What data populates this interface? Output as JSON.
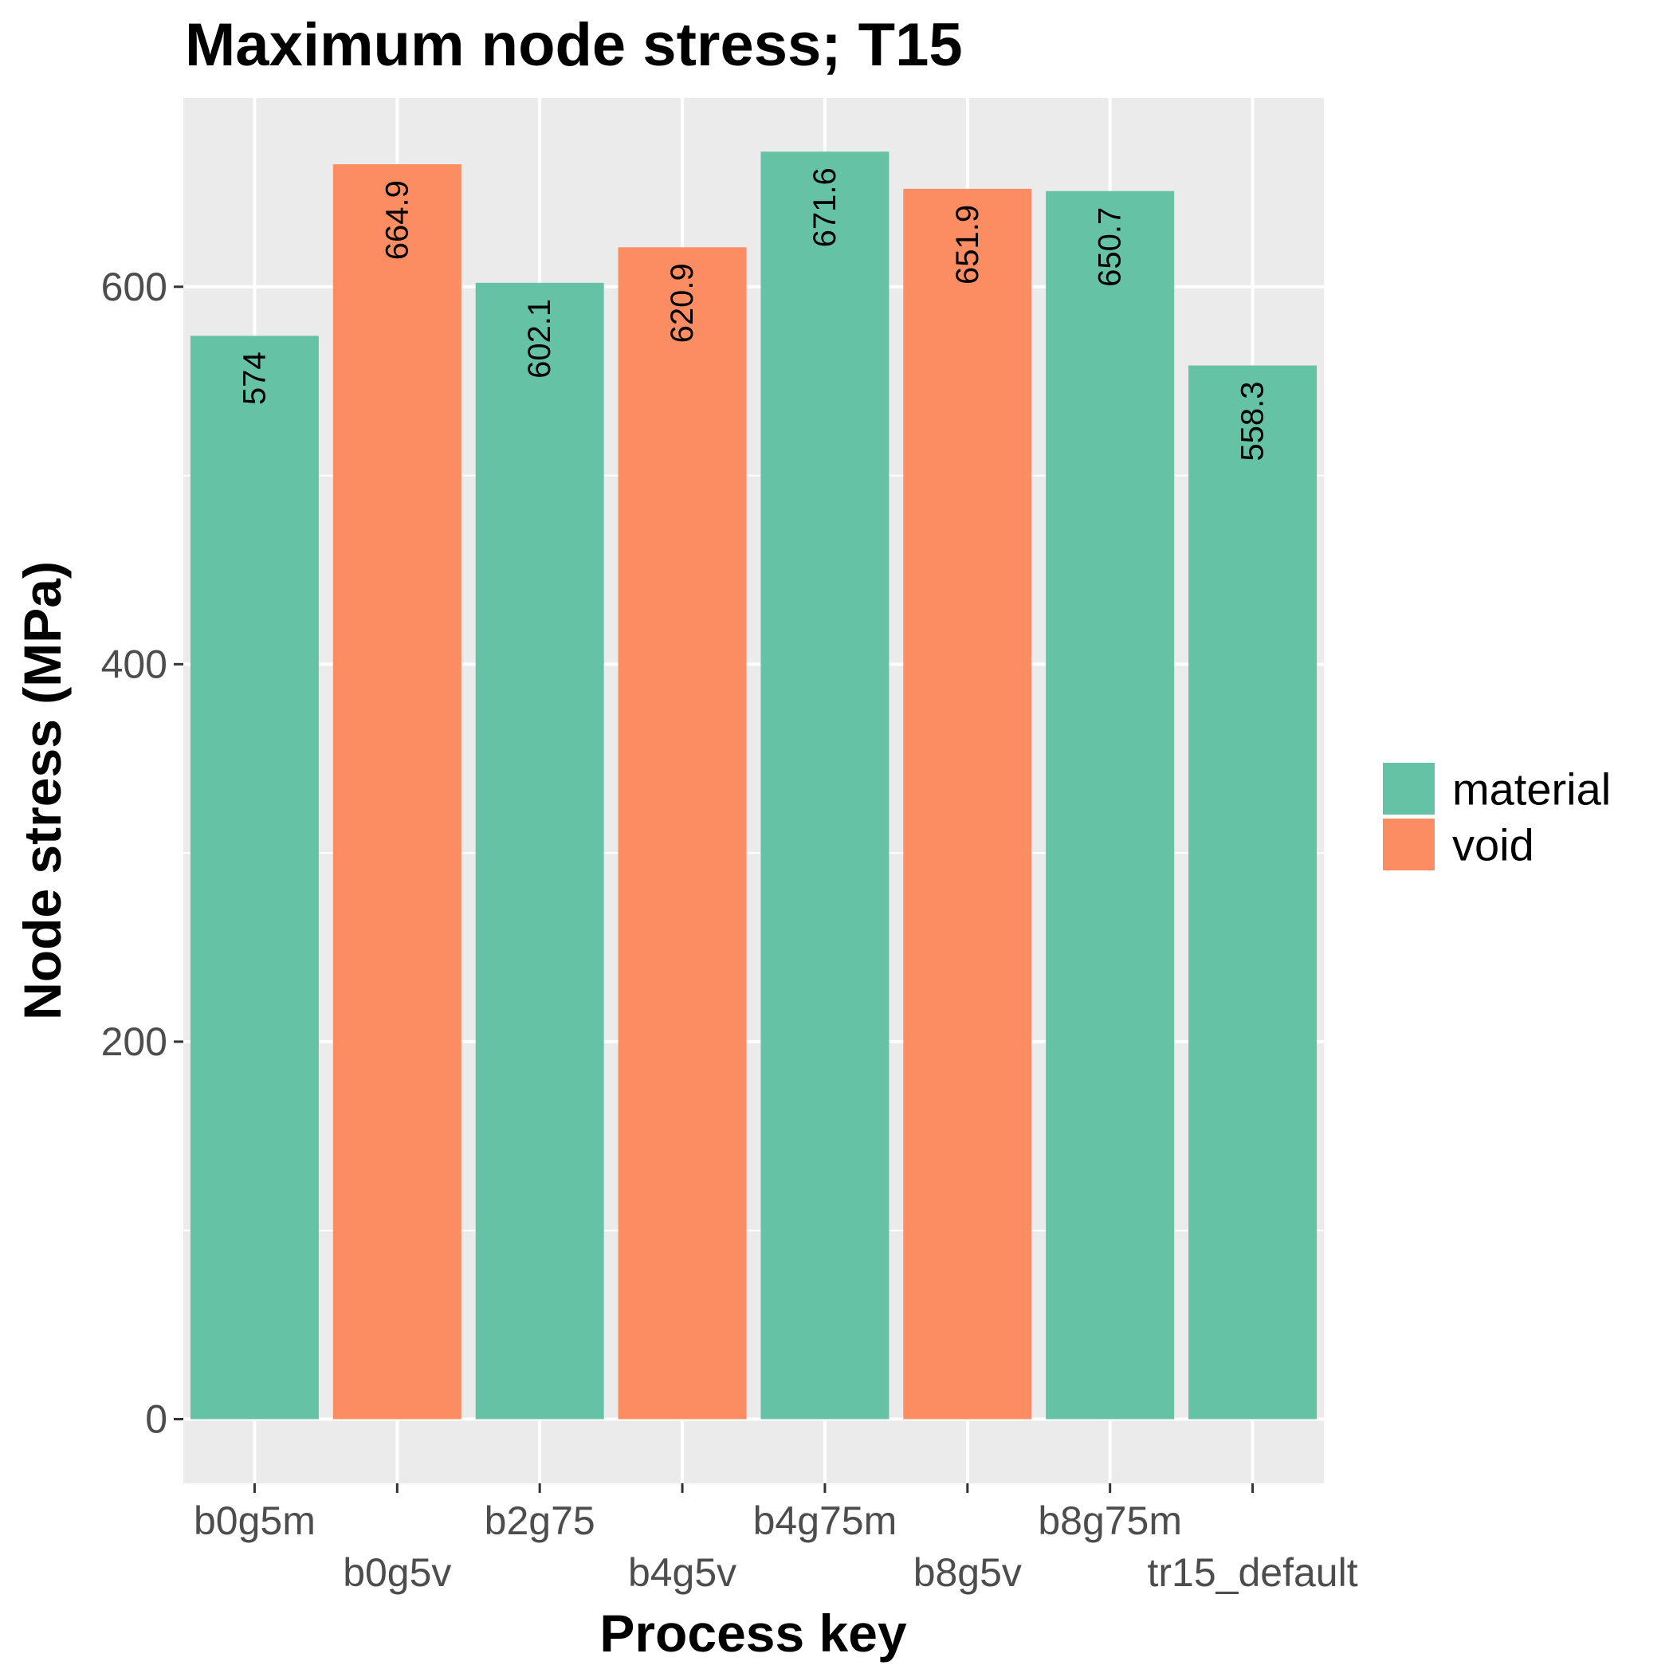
{
  "chart_data": {
    "type": "bar",
    "title": "Maximum node stress; T15",
    "xlabel": "Process key",
    "ylabel": "Node stress (MPa)",
    "categories": [
      "b0g5m",
      "b0g5v",
      "b2g75",
      "b4g5v",
      "b4g75m",
      "b8g5v",
      "b8g75m",
      "tr15_default"
    ],
    "values": [
      574,
      664.9,
      602.1,
      620.9,
      671.6,
      651.9,
      650.7,
      558.3
    ],
    "value_labels": [
      "574",
      "664.9",
      "602.1",
      "620.9",
      "671.6",
      "651.9",
      "650.7",
      "558.3"
    ],
    "groups": [
      "material",
      "void",
      "material",
      "void",
      "material",
      "void",
      "material",
      "material"
    ],
    "legend": {
      "title": "",
      "position": "right",
      "entries": [
        {
          "name": "material",
          "color": "#66c2a5"
        },
        {
          "name": "void",
          "color": "#fc8d62"
        }
      ]
    },
    "ylim": [
      -34,
      700
    ],
    "yticks": [
      0,
      200,
      400,
      600
    ],
    "grid": true,
    "colors": {
      "panel": "#ebebeb",
      "grid": "#ffffff",
      "tick": "#333333"
    }
  }
}
